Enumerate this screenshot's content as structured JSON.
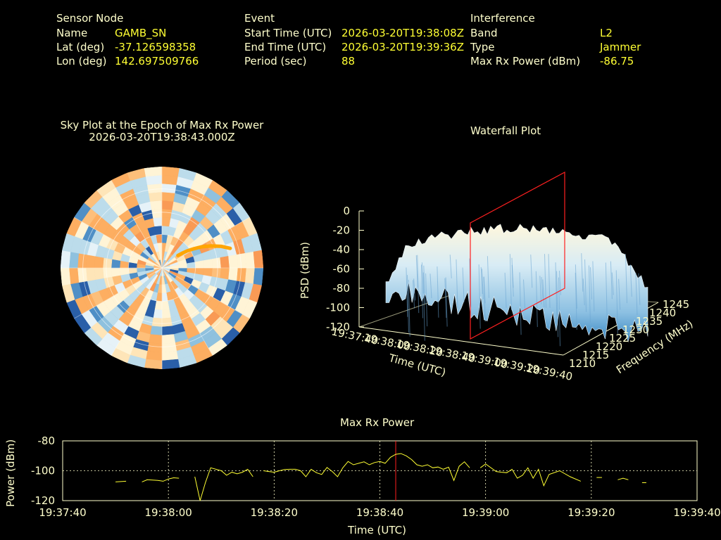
{
  "sensor": {
    "heading": "Sensor Node",
    "name_label": "Name",
    "name_value": "GAMB_SN",
    "lat_label": "Lat (deg)",
    "lat_value": "-37.126598358",
    "lon_label": "Lon (deg)",
    "lon_value": "142.697509766"
  },
  "event": {
    "heading": "Event",
    "start_label": "Start Time (UTC)",
    "start_value": "2026-03-20T19:38:08Z",
    "end_label": "End Time (UTC)",
    "end_value": "2026-03-20T19:39:36Z",
    "period_label": "Period (sec)",
    "period_value": "88"
  },
  "interference": {
    "heading": "Interference",
    "band_label": "Band",
    "band_value": "L2",
    "type_label": "Type",
    "type_value": "Jammer",
    "maxrx_label": "Max Rx Power (dBm)",
    "maxrx_value": "-86.75"
  },
  "colors": {
    "label": "#ffffcc",
    "value": "#ffff33",
    "line": "#ffff33",
    "marker": "#ff2020",
    "track": "#ffa500"
  },
  "chart_data": [
    {
      "type": "heatmap",
      "title": "Sky Plot at the Epoch of Max Rx Power",
      "subtitle": "2026-03-20T19:38:43.000Z",
      "projection": "polar",
      "track": [
        [
          52,
          18
        ],
        [
          54,
          22
        ],
        [
          56,
          27
        ],
        [
          59,
          33
        ],
        [
          62,
          40
        ],
        [
          66,
          48
        ],
        [
          70,
          56
        ],
        [
          74,
          63
        ]
      ]
    },
    {
      "type": "area",
      "title": "Waterfall Plot",
      "zlabel": "PSD (dBm)",
      "xlabel": "Time (UTC)",
      "ylabel": "Frequency (MHz)",
      "z_ticks": [
        "0",
        "-20",
        "-40",
        "-60",
        "-80",
        "-100",
        "-120"
      ],
      "x_ticks": [
        "19:37:40",
        "19:38:00",
        "19:38:20",
        "19:38:40",
        "19:39:00",
        "19:39:20",
        "19:39:40"
      ],
      "y_ticks": [
        "1210",
        "1215",
        "1220",
        "1225",
        "1230",
        "1235",
        "1240",
        "1245"
      ],
      "zlim": [
        -120,
        0
      ],
      "marker_time": "19:38:43"
    },
    {
      "type": "line",
      "title": "Max Rx Power",
      "xlabel": "Time (UTC)",
      "ylabel": "Power (dBm)",
      "ylim": [
        -120,
        -80
      ],
      "y_ticks": [
        "-80",
        "-100",
        "-120"
      ],
      "x_ticks": [
        "19:37:40",
        "19:38:00",
        "19:38:20",
        "19:38:40",
        "19:39:00",
        "19:39:20",
        "19:39:40"
      ],
      "xlim_sec": [
        0,
        120
      ],
      "marker_sec": 63,
      "series": [
        {
          "segments": [
            [
              [
                10,
                -107.5
              ],
              [
                12,
                -107
              ]
            ],
            [
              [
                15,
                -107.5
              ],
              [
                16,
                -106
              ],
              [
                18,
                -106.5
              ],
              [
                19,
                -107
              ],
              [
                20,
                -105.5
              ],
              [
                21,
                -104.7
              ],
              [
                22,
                -105
              ]
            ],
            [
              [
                25,
                -104
              ],
              [
                26,
                -120
              ],
              [
                27,
                -108
              ],
              [
                28,
                -98
              ],
              [
                30,
                -100
              ],
              [
                31,
                -103
              ],
              [
                32,
                -101
              ],
              [
                33,
                -102
              ],
              [
                34,
                -101
              ],
              [
                35,
                -99
              ],
              [
                36,
                -104
              ]
            ],
            [
              [
                38,
                -100
              ],
              [
                39,
                -100.5
              ],
              [
                40,
                -101
              ],
              [
                41,
                -100
              ],
              [
                42,
                -99.2
              ],
              [
                43,
                -99
              ],
              [
                44,
                -99
              ],
              [
                45,
                -100
              ],
              [
                46,
                -104
              ],
              [
                47,
                -99
              ],
              [
                48,
                -101.3
              ],
              [
                49,
                -102.5
              ],
              [
                50,
                -97.8
              ],
              [
                51,
                -100.5
              ],
              [
                52,
                -104
              ],
              [
                53,
                -98
              ],
              [
                54,
                -93.8
              ],
              [
                55,
                -96
              ],
              [
                56,
                -95
              ],
              [
                57,
                -94
              ],
              [
                58,
                -96
              ],
              [
                59,
                -94.5
              ],
              [
                60,
                -93.8
              ],
              [
                61,
                -95
              ],
              [
                62,
                -91
              ],
              [
                63,
                -89
              ],
              [
                64,
                -88.5
              ],
              [
                65,
                -90
              ],
              [
                66,
                -92.5
              ],
              [
                67,
                -96
              ],
              [
                68,
                -97
              ],
              [
                69,
                -96
              ],
              [
                70,
                -98
              ],
              [
                71,
                -97.5
              ],
              [
                72,
                -99
              ],
              [
                73,
                -97.6
              ],
              [
                74,
                -106.5
              ],
              [
                75,
                -97
              ],
              [
                76,
                -94
              ],
              [
                77,
                -98
              ]
            ],
            [
              [
                79,
                -98
              ],
              [
                80,
                -95.5
              ],
              [
                82,
                -100.5
              ],
              [
                83,
                -101
              ],
              [
                84,
                -101.3
              ],
              [
                85,
                -99
              ],
              [
                86,
                -105
              ],
              [
                87,
                -103
              ],
              [
                88,
                -98
              ],
              [
                89,
                -105
              ],
              [
                90,
                -99
              ],
              [
                91,
                -110
              ],
              [
                92,
                -102.5
              ],
              [
                94,
                -100
              ],
              [
                96,
                -104
              ],
              [
                98,
                -107
              ]
            ],
            [
              [
                101,
                -104.5
              ],
              [
                102,
                -104.5
              ]
            ],
            [
              [
                105,
                -106
              ],
              [
                106,
                -105
              ],
              [
                107,
                -106
              ]
            ],
            [
              [
                110,
                -108
              ]
            ]
          ]
        }
      ]
    }
  ]
}
